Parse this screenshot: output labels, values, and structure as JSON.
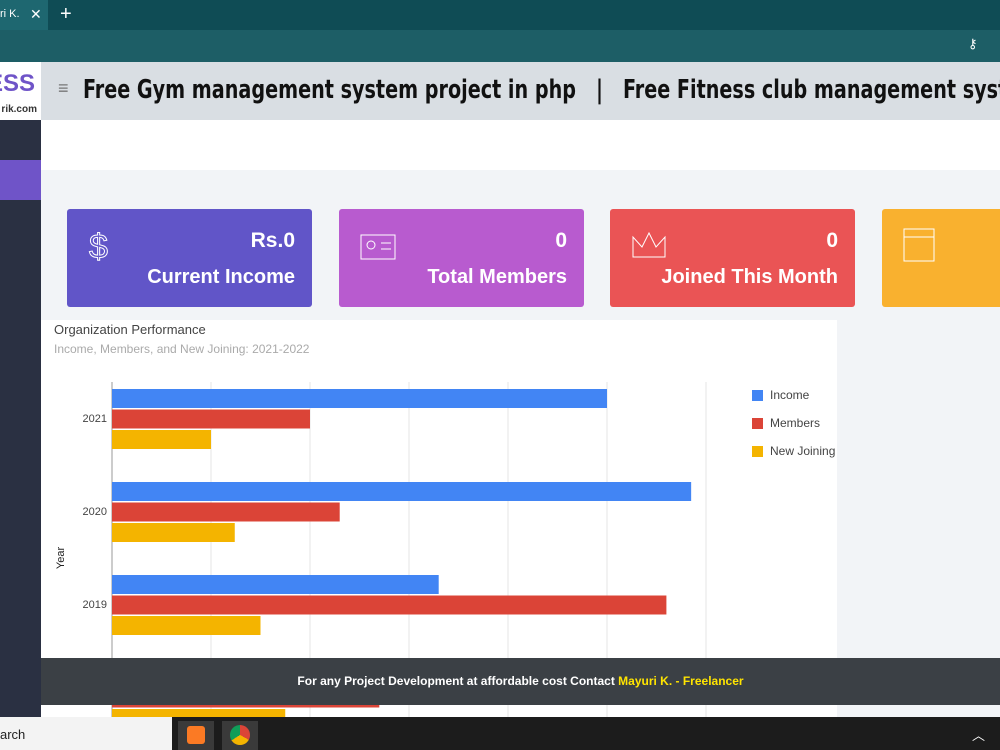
{
  "browser": {
    "tab_title": "ri K."
  },
  "header": {
    "logo": "ESS",
    "logo_sub": "rik.com",
    "title": "Free Gym management system project in php   |   Free Fitness club management system"
  },
  "cards": [
    {
      "value": "Rs.0",
      "label": "Current Income"
    },
    {
      "value": "0",
      "label": "Total Members"
    },
    {
      "value": "0",
      "label": "Joined This Month"
    }
  ],
  "chart_data": {
    "type": "bar",
    "orientation": "horizontal",
    "title": "Organization Performance",
    "subtitle": "Income, Members, and New Joining: 2021-2022",
    "y_label": "Year",
    "categories": [
      "2021",
      "2020",
      "2019",
      null
    ],
    "series": [
      {
        "name": "Income",
        "color": "#4285f4",
        "values": [
          5.0,
          5.85,
          3.3,
          0
        ]
      },
      {
        "name": "Members",
        "color": "#db4437",
        "values": [
          2.0,
          2.3,
          5.6,
          2.7
        ]
      },
      {
        "name": "New Joining",
        "color": "#f4b400",
        "values": [
          1.0,
          1.24,
          1.5,
          1.75
        ]
      }
    ],
    "xlim": [
      0,
      6
    ],
    "grid": true,
    "legend": "right"
  },
  "footer": {
    "text": "For any Project Development at affordable cost Contact",
    "link": "Mayuri K. - Freelancer"
  },
  "taskbar": {
    "search": "arch"
  }
}
